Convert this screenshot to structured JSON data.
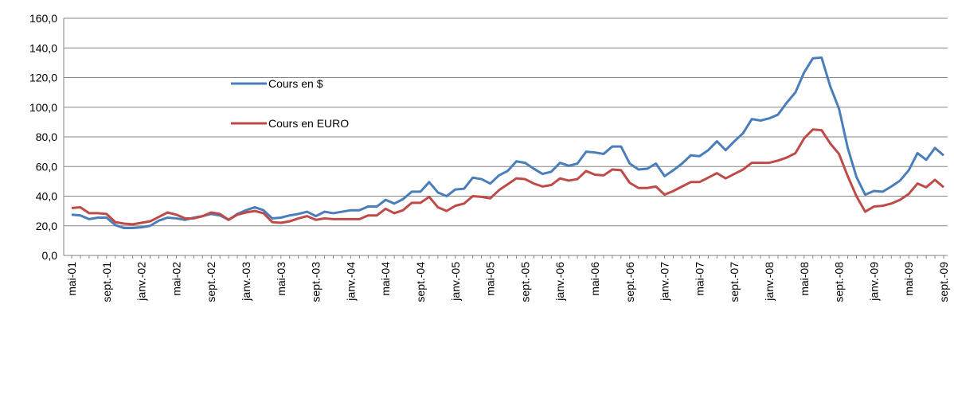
{
  "chart_data": {
    "type": "line",
    "categories": [
      "mai-01",
      null,
      null,
      null,
      "sept.-01",
      null,
      null,
      null,
      "janv.-02",
      null,
      null,
      null,
      "mai-02",
      null,
      null,
      null,
      "sept.-02",
      null,
      null,
      null,
      "janv.-03",
      null,
      null,
      null,
      "mai-03",
      null,
      null,
      null,
      "sept.-03",
      null,
      null,
      null,
      "janv.-04",
      null,
      null,
      null,
      "mai-04",
      null,
      null,
      null,
      "sept.-04",
      null,
      null,
      null,
      "janv.-05",
      null,
      null,
      null,
      "mai-05",
      null,
      null,
      null,
      "sept.-05",
      null,
      null,
      null,
      "janv.-06",
      null,
      null,
      null,
      "mai-06",
      null,
      null,
      null,
      "sept.-06",
      null,
      null,
      null,
      "janv.-07",
      null,
      null,
      null,
      "mai-07",
      null,
      null,
      null,
      "sept.-07",
      null,
      null,
      null,
      "janv.-08",
      null,
      null,
      null,
      "mai-08",
      null,
      null,
      null,
      "sept.-08",
      null,
      null,
      null,
      "janv.-09",
      null,
      null,
      null,
      "mai-09",
      null,
      null,
      null,
      "sept.-09"
    ],
    "series": [
      {
        "name": "Cours en $",
        "color": "#4a7ebb",
        "values": [
          27.5,
          27,
          24.5,
          25.5,
          25.5,
          20.5,
          18.5,
          18.5,
          19,
          20,
          23.5,
          25.5,
          25,
          24,
          25.5,
          26.5,
          28,
          27,
          24,
          28,
          30.5,
          32.5,
          30.5,
          25,
          25.5,
          27,
          28,
          29.5,
          26.5,
          29.5,
          28.5,
          29.5,
          30.5,
          30.5,
          33,
          33,
          37.5,
          35,
          38,
          43,
          43,
          49.5,
          42.5,
          40,
          44.5,
          45,
          52.5,
          51.5,
          48.5,
          54,
          57,
          63.5,
          62.5,
          58.5,
          55,
          56.5,
          62.5,
          60.5,
          62,
          70,
          69.5,
          68.5,
          73.5,
          73.5,
          62,
          58,
          58.5,
          62,
          53.5,
          57.5,
          62,
          67.5,
          67,
          71,
          77,
          71,
          77,
          82.5,
          92,
          91,
          92.5,
          95,
          103,
          110,
          123.5,
          133,
          133.5,
          114,
          99,
          72.5,
          53,
          41,
          43.5,
          43,
          46.5,
          50.5,
          57.5,
          69,
          64.5,
          72.5,
          67.5
        ]
      },
      {
        "name": "Cours en EURO",
        "color": "#be4b48",
        "values": [
          32,
          32.5,
          28.5,
          28.5,
          28,
          22.5,
          21.5,
          21,
          22,
          23,
          26,
          29,
          27.5,
          25,
          25,
          26.5,
          29,
          28,
          24,
          27.5,
          29,
          30,
          28.5,
          22.5,
          22,
          23,
          25,
          26.5,
          24,
          25,
          24.5,
          24.5,
          24.5,
          24.5,
          27,
          27,
          31.5,
          28.5,
          30.5,
          35.5,
          35.5,
          39.5,
          32.5,
          30,
          33.5,
          35,
          40,
          39.5,
          38.5,
          44,
          48,
          52,
          51.5,
          48.5,
          46.5,
          47.5,
          52,
          50.5,
          51.5,
          57,
          54.5,
          54,
          58,
          57.5,
          49,
          45.5,
          45.5,
          46.5,
          41,
          43.5,
          46.5,
          49.5,
          49.5,
          52.5,
          55.5,
          52,
          55,
          58,
          62.5,
          62.5,
          62.5,
          64,
          66,
          69,
          79,
          85,
          84.5,
          75.5,
          68.5,
          53.5,
          40,
          29.5,
          33,
          33.5,
          35,
          37.5,
          41.5,
          48.5,
          46,
          51,
          46
        ]
      }
    ],
    "ylim": [
      0,
      160
    ],
    "yticks": [
      {
        "value": 0,
        "label": "0,0"
      },
      {
        "value": 20,
        "label": "20,0"
      },
      {
        "value": 40,
        "label": "40,0"
      },
      {
        "value": 60,
        "label": "60,0"
      },
      {
        "value": 80,
        "label": "80,0"
      },
      {
        "value": 100,
        "label": "100,0"
      },
      {
        "value": 120,
        "label": "120,0"
      },
      {
        "value": 140,
        "label": "140,0"
      },
      {
        "value": 160,
        "label": "160,0"
      }
    ],
    "grid": true,
    "legend": "upper left"
  }
}
